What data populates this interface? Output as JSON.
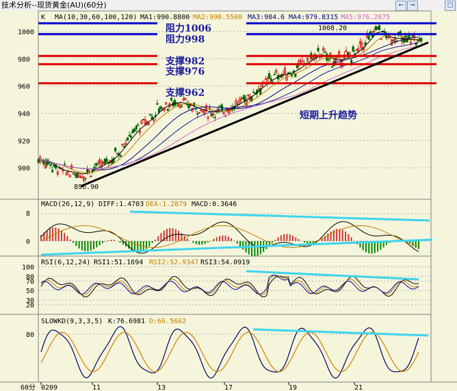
{
  "window": {
    "title": "技术分析--现货黄金(AU)(60分)",
    "buttons": [
      {
        "name": "back-icon",
        "glyph": "⇐"
      },
      {
        "name": "forward-icon",
        "glyph": "⇒"
      },
      {
        "name": "maximize-icon",
        "glyph": "□"
      }
    ]
  },
  "period_label": "60分",
  "chart_data": [
    {
      "type": "line",
      "panel": "price",
      "header": {
        "code": "K",
        "params": "MA(10,30,60,100,120)",
        "ma": [
          {
            "label": "MA1:990.8800",
            "color": "#000000"
          },
          {
            "label": "MA2:990.5500",
            "color": "#c08000"
          },
          {
            "label": "MA3:984.6",
            "color": "#000080"
          },
          {
            "label": "MA4:979.8315",
            "color": "#000080"
          },
          {
            "label": "MA5:976.2875",
            "color": "#cc66cc"
          }
        ]
      },
      "x_ticks": [
        "0209",
        "11",
        "13",
        "17",
        "19",
        "21"
      ],
      "ylim": [
        880,
        1012
      ],
      "y_ticks": [
        900,
        920,
        940,
        960,
        980,
        1000
      ],
      "close": [
        906,
        904,
        900,
        898,
        897,
        896,
        895,
        898,
        901,
        903,
        906,
        912,
        918,
        925,
        930,
        934,
        938,
        944,
        946,
        948,
        948,
        946,
        944,
        942,
        941,
        941,
        942,
        944,
        947,
        950,
        953,
        958,
        962,
        966,
        968,
        969,
        970,
        975,
        978,
        981,
        984,
        981,
        978,
        980,
        982,
        985,
        990,
        996,
        1002,
        998,
        994,
        996,
        993,
        995,
        993
      ],
      "annotations": {
        "high": "1008.20",
        "low": "896.90"
      },
      "levels": [
        {
          "label": "阻力1006",
          "value": 1006,
          "color": "#0000cc"
        },
        {
          "label": "阻力998",
          "value": 998,
          "color": "#0000cc"
        },
        {
          "label": "支撑982",
          "value": 982,
          "color": "#dd0000"
        },
        {
          "label": "支撑976",
          "value": 976,
          "color": "#dd0000"
        },
        {
          "label": "支撑962",
          "value": 962,
          "color": "#dd0000"
        }
      ],
      "trend_note": "短期上升趋势"
    },
    {
      "type": "bar",
      "panel": "macd",
      "header": {
        "params": "MACD(26,12,9)",
        "diff": "DIFF:1.4703",
        "dea": "DEA:1.2879",
        "macd": "MACD:0.3646"
      },
      "ylim": [
        -3,
        10
      ],
      "y_ticks": [
        0,
        8
      ]
    },
    {
      "type": "line",
      "panel": "rsi",
      "header": {
        "params": "RSI(6,12,24)",
        "rsi1": "RSI1:51.1694",
        "rsi2": "RSI2:52.9347",
        "rsi3": "RSI3:54.0919"
      },
      "ylim": [
        10,
        105
      ],
      "y_ticks": [
        20,
        50,
        80,
        100
      ],
      "y_tick_labels": [
        "20",
        "50",
        "80",
        "100"
      ],
      "extra_tick_labels": [
        "30",
        "70"
      ]
    },
    {
      "type": "line",
      "panel": "slowkd",
      "header": {
        "params": "SLOWKD(9,3,3,5)",
        "k": "K:76.6981",
        "d": "D:66.5662"
      },
      "ylim": [
        0,
        100
      ],
      "y_ticks": [
        80
      ]
    }
  ]
}
